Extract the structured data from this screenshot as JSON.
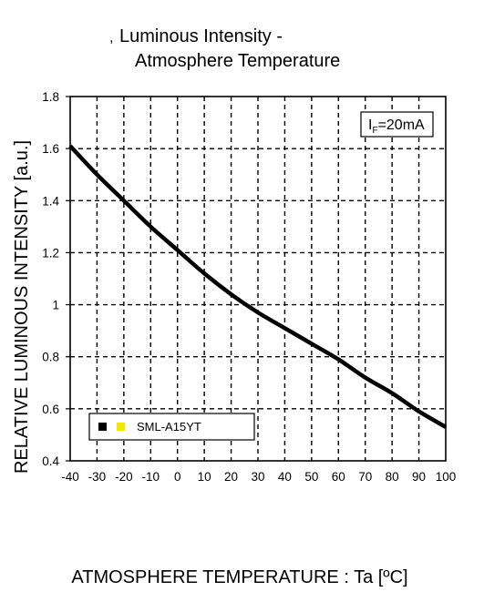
{
  "chart_data": {
    "type": "line",
    "title_prefix": ",",
    "title_line1": "Luminous Intensity -",
    "title_line2": "Atmosphere Temperature",
    "xlabel": "ATMOSPHERE TEMPERATURE : Ta [ºC]",
    "ylabel": "RELATIVE LUMINOUS INTENSITY [a.u.]",
    "xlim": [
      -40,
      100
    ],
    "ylim": [
      0.4,
      1.8
    ],
    "xticks": [
      -40,
      -30,
      -20,
      -10,
      0,
      10,
      20,
      30,
      40,
      50,
      60,
      70,
      80,
      90,
      100
    ],
    "yticks": [
      0.4,
      0.6,
      0.8,
      1,
      1.2,
      1.4,
      1.6,
      1.8
    ],
    "ytick_labels": [
      "0.4",
      "0.6",
      "0.8",
      "1",
      "1.2",
      "1.4",
      "1.6",
      "1.8"
    ],
    "grid": true,
    "condition": {
      "prefix": "I",
      "subscript": "F",
      "suffix": "=20mA"
    },
    "legend": {
      "placement": "bottom-left",
      "marker_colors": [
        "#000000",
        "#f5e600"
      ]
    },
    "series": [
      {
        "name": "SML-A15YT",
        "color": "#000000",
        "x": [
          -40,
          -30,
          -20,
          -10,
          0,
          10,
          20,
          30,
          40,
          50,
          60,
          70,
          80,
          90,
          100
        ],
        "y": [
          1.61,
          1.5,
          1.4,
          1.3,
          1.21,
          1.12,
          1.04,
          0.97,
          0.91,
          0.85,
          0.79,
          0.72,
          0.66,
          0.59,
          0.53
        ]
      }
    ]
  }
}
